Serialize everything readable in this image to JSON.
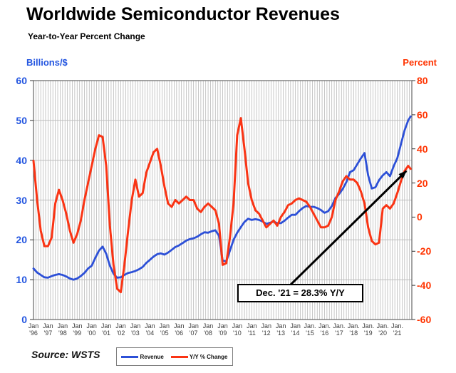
{
  "page": {
    "title": "Worldwide Semiconductor Revenues",
    "subtitle": "Year-to-Year Percent Change"
  },
  "axes": {
    "left_title": "Billions/$",
    "right_title": "Percent",
    "left_ticks": [
      60,
      50,
      40,
      30,
      20,
      10,
      0
    ],
    "right_ticks": [
      80,
      60,
      40,
      20,
      0,
      -20,
      -40,
      -60
    ],
    "x_labels": [
      {
        "month": "Jan",
        "year": "'96"
      },
      {
        "month": "Jan",
        "year": "'97"
      },
      {
        "month": "Jan",
        "year": "'98"
      },
      {
        "month": "Jan",
        "year": "'99"
      },
      {
        "month": "Jan",
        "year": "'00"
      },
      {
        "month": "Jan",
        "year": "'01"
      },
      {
        "month": "Jan",
        "year": "'02"
      },
      {
        "month": "Jan",
        "year": "'03"
      },
      {
        "month": "Jan",
        "year": "'04"
      },
      {
        "month": "Jan",
        "year": "'05"
      },
      {
        "month": "Jan",
        "year": "'06"
      },
      {
        "month": "Jan",
        "year": "'07"
      },
      {
        "month": "Jan",
        "year": "'08"
      },
      {
        "month": "Jan",
        "year": "'09"
      },
      {
        "month": "Jan",
        "year": "'10"
      },
      {
        "month": "Jan",
        "year": "'11"
      },
      {
        "month": "Jan",
        "year": "'12"
      },
      {
        "month": "Jan",
        "year": "'13"
      },
      {
        "month": "Jan",
        "year": "'14"
      },
      {
        "month": "Jan.",
        "year": "'15"
      },
      {
        "month": "Jan.",
        "year": "'16"
      },
      {
        "month": "Jan.",
        "year": "'17"
      },
      {
        "month": "Jan.",
        "year": "'18"
      },
      {
        "month": "Jan.",
        "year": "'19"
      },
      {
        "month": "Jan.",
        "year": "'20"
      },
      {
        "month": "Jan.",
        "year": "'21"
      }
    ]
  },
  "annotation": {
    "text": "Dec. '21 = 28.3% Y/Y"
  },
  "legend": [
    {
      "label": "Revenue",
      "color": "#2d50d7"
    },
    {
      "label": "Y/Y % Change",
      "color": "#fa3414"
    }
  ],
  "source": "Source: WSTS",
  "colors": {
    "revenue_line": "#2d50d7",
    "yoy_line": "#fa3414",
    "left_axis_text": "#2456e0",
    "right_axis_text": "#ff3300",
    "grid_vertical": "#b9b9b9",
    "grid_horizontal": "#bdbdbd",
    "plot_border": "#666666",
    "annotation_arrow": "#000000"
  },
  "chart_data": {
    "type": "line",
    "title": "Worldwide Semiconductor Revenues",
    "subtitle": "Year-to-Year Percent Change",
    "x_start": 1996,
    "x_step_years": 0.25,
    "x_last": 2021.917,
    "x_note": "quarterly samples (Jan/Apr/Jul/Oct) 1996-2021 plus final Dec 2021 point",
    "left_ylim": [
      0,
      60
    ],
    "right_ylim": [
      -60,
      80
    ],
    "grid": true,
    "legend_position": "bottom",
    "series": [
      {
        "name": "Revenue",
        "units": "US$ billions / month (left axis)",
        "axis": "left",
        "color": "#2d50d7",
        "values": [
          12.8,
          11.8,
          11.2,
          10.6,
          10.5,
          10.9,
          11.2,
          11.4,
          11.2,
          10.8,
          10.3,
          10.0,
          10.3,
          10.9,
          11.7,
          12.8,
          13.5,
          15.5,
          17.3,
          18.3,
          16.5,
          13.5,
          11.5,
          10.5,
          10.6,
          11.2,
          11.7,
          11.9,
          12.2,
          12.6,
          13.2,
          14.2,
          15.0,
          15.8,
          16.4,
          16.6,
          16.3,
          16.8,
          17.5,
          18.2,
          18.6,
          19.2,
          19.8,
          20.2,
          20.4,
          20.8,
          21.4,
          21.9,
          21.8,
          22.2,
          22.4,
          21.0,
          14.8,
          14.6,
          17.3,
          20.0,
          21.8,
          23.2,
          24.5,
          25.3,
          25.0,
          25.2,
          25.0,
          24.6,
          24.0,
          24.3,
          24.6,
          24.2,
          24.2,
          24.8,
          25.6,
          26.3,
          26.3,
          27.2,
          28.0,
          28.5,
          28.3,
          28.3,
          28.0,
          27.5,
          26.8,
          27.2,
          28.5,
          30.5,
          31.5,
          32.8,
          34.5,
          37.0,
          37.5,
          39.0,
          40.5,
          41.8,
          36.2,
          32.9,
          33.2,
          35.0,
          36.2,
          37.0,
          36.0,
          38.5,
          40.5,
          44.0,
          47.5,
          50.0,
          51.0
        ]
      },
      {
        "name": "Y/Y % Change",
        "units": "percent (right axis)",
        "axis": "right",
        "color": "#fa3414",
        "values": [
          33,
          10,
          -8,
          -17,
          -17,
          -12,
          8,
          16,
          10,
          2,
          -8,
          -15,
          -10,
          -2,
          10,
          20,
          30,
          40,
          48,
          47,
          30,
          -5,
          -28,
          -42,
          -44,
          -28,
          -8,
          10,
          22,
          12,
          14,
          26,
          32,
          38,
          40,
          30,
          18,
          8,
          6,
          10,
          8,
          10,
          12,
          10,
          10,
          5,
          3,
          6,
          8,
          6,
          4,
          -4,
          -28,
          -27,
          -12,
          8,
          48,
          58,
          40,
          20,
          10,
          4,
          2,
          -2,
          -6,
          -4,
          -2,
          -5,
          0,
          3,
          7,
          8,
          10,
          11,
          10,
          9,
          6,
          2,
          -2,
          -6,
          -6,
          -5,
          0,
          10,
          15,
          21,
          24,
          22,
          22,
          20,
          15,
          8,
          -6,
          -14,
          -16,
          -15,
          5,
          7,
          5,
          8,
          14,
          21,
          27,
          30,
          28.3
        ]
      }
    ],
    "annotation": {
      "text": "Dec. '21 = 28.3% Y/Y",
      "points_to": {
        "x": 2021.917,
        "y_right": 28.3
      }
    }
  }
}
